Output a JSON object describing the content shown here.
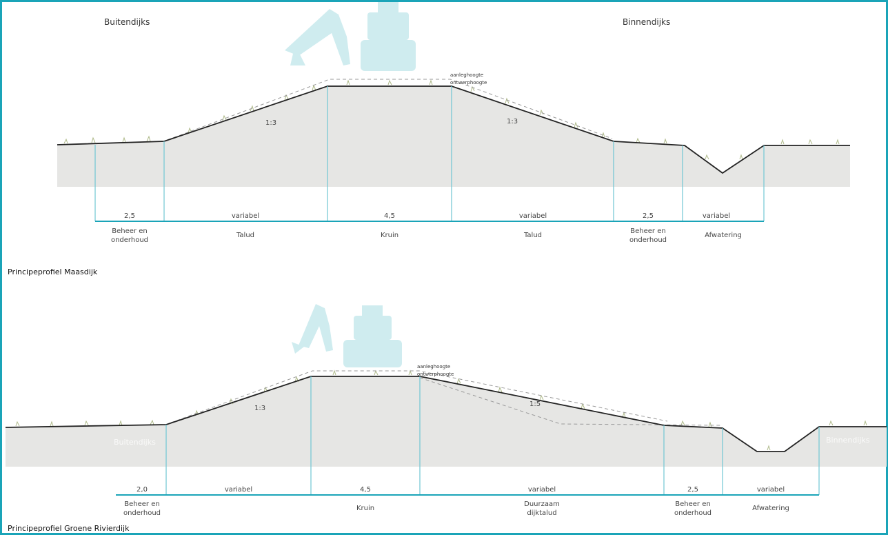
{
  "top": {
    "side_left": "Buitendijks",
    "side_right": "Binnendijks",
    "levels": [
      "aanleghoogte",
      "ontwerphoogte"
    ],
    "slopes": [
      "1:3",
      "1:3"
    ],
    "dims": [
      "2,5",
      "variabel",
      "4,5",
      "variabel",
      "2,5",
      "variabel"
    ],
    "zones": [
      "Beheer en\nonderhoud",
      "Talud",
      "Kruin",
      "Talud",
      "Beheer en\nonderhoud",
      "Afwatering"
    ],
    "title": "Principeprofiel Maasdijk"
  },
  "bottom": {
    "side_left": "Buitendijks",
    "side_right": "Binnendijks",
    "levels": [
      "aanleghoogte",
      "ontwerphoogte"
    ],
    "slopes": [
      "1:3",
      "1:5"
    ],
    "dims": [
      "2,0",
      "variabel",
      "4,5",
      "variabel",
      "2,5",
      "variabel"
    ],
    "zones": [
      "Beheer en\nonderhoud",
      "Kruin",
      "Duurzaam\ndijktalud",
      "Beheer en\nonderhoud",
      "Afwatering"
    ],
    "title": "Principeprofiel Groene Rivierdijk"
  },
  "colors": {
    "frame": "#1aa4b8",
    "ground": "#e6e6e4",
    "measure_line": "#1aa4b8",
    "machine_watermark": "#a9dde3"
  },
  "icons": [
    "excavator-watermark-icon",
    "grass-tuft-icon"
  ]
}
